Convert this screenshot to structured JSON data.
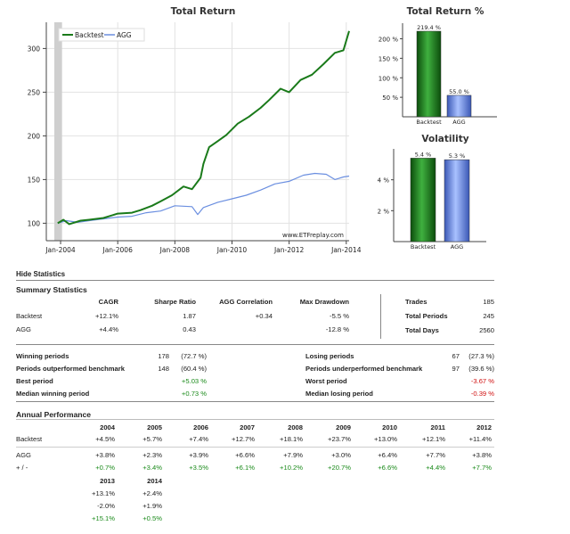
{
  "colors": {
    "backtest": "#1a7a1a",
    "agg": "#6b8fe0",
    "positive": "#1a8a1a",
    "negative": "#d01010"
  },
  "chart_data": [
    {
      "type": "line",
      "title": "Total Return",
      "legend": [
        "Backtest",
        "AGG"
      ],
      "legend_position": "top-left",
      "watermark": "www.ETFreplay.com",
      "x_ticks": [
        "Jan-2004",
        "Jan-2006",
        "Jan-2008",
        "Jan-2010",
        "Jan-2012",
        "Jan-2014"
      ],
      "y_ticks": [
        100,
        150,
        200,
        250,
        300
      ],
      "ylim": [
        80,
        330
      ],
      "xlim": [
        2003.5,
        2014.1
      ],
      "grid": true,
      "series": [
        {
          "name": "Backtest",
          "points": [
            [
              2003.9,
              100
            ],
            [
              2004.1,
              104
            ],
            [
              2004.3,
              99
            ],
            [
              2004.7,
              103
            ],
            [
              2005.0,
              104
            ],
            [
              2005.5,
              106
            ],
            [
              2006.0,
              111
            ],
            [
              2006.5,
              112
            ],
            [
              2006.8,
              115
            ],
            [
              2007.2,
              120
            ],
            [
              2007.5,
              125
            ],
            [
              2007.9,
              132
            ],
            [
              2008.3,
              142
            ],
            [
              2008.6,
              139
            ],
            [
              2008.9,
              152
            ],
            [
              2009.0,
              168
            ],
            [
              2009.2,
              187
            ],
            [
              2009.5,
              194
            ],
            [
              2009.8,
              201
            ],
            [
              2010.2,
              214
            ],
            [
              2010.6,
              222
            ],
            [
              2011.0,
              232
            ],
            [
              2011.3,
              241
            ],
            [
              2011.7,
              254
            ],
            [
              2012.0,
              250
            ],
            [
              2012.4,
              264
            ],
            [
              2012.8,
              270
            ],
            [
              2013.2,
              282
            ],
            [
              2013.6,
              295
            ],
            [
              2013.9,
              298
            ],
            [
              2014.1,
              320
            ]
          ]
        },
        {
          "name": "AGG",
          "points": [
            [
              2003.9,
              100
            ],
            [
              2004.2,
              103
            ],
            [
              2004.6,
              101
            ],
            [
              2005.0,
              103
            ],
            [
              2005.5,
              105
            ],
            [
              2006.0,
              107
            ],
            [
              2006.5,
              108
            ],
            [
              2007.0,
              112
            ],
            [
              2007.5,
              114
            ],
            [
              2008.0,
              120
            ],
            [
              2008.6,
              119
            ],
            [
              2008.8,
              110
            ],
            [
              2009.0,
              118
            ],
            [
              2009.5,
              124
            ],
            [
              2010.0,
              128
            ],
            [
              2010.5,
              132
            ],
            [
              2011.0,
              138
            ],
            [
              2011.5,
              145
            ],
            [
              2012.0,
              148
            ],
            [
              2012.5,
              155
            ],
            [
              2012.9,
              157
            ],
            [
              2013.3,
              156
            ],
            [
              2013.6,
              150
            ],
            [
              2013.9,
              153
            ],
            [
              2014.1,
              154
            ]
          ]
        }
      ]
    },
    {
      "type": "bar",
      "title": "Total Return %",
      "categories": [
        "Backtest",
        "AGG"
      ],
      "values": [
        219.4,
        55.0
      ],
      "labels": [
        "219.4 %",
        "55.0 %"
      ],
      "y_ticks": [
        "50 %",
        "100 %",
        "150 %",
        "200 %"
      ],
      "ylim": [
        0,
        240
      ]
    },
    {
      "type": "bar",
      "title": "Volatility",
      "categories": [
        "Backtest",
        "AGG"
      ],
      "values": [
        5.4,
        5.3
      ],
      "labels": [
        "5.4 %",
        "5.3 %"
      ],
      "y_ticks": [
        "2 %",
        "4 %"
      ],
      "ylim": [
        0,
        6
      ]
    }
  ],
  "hide_stats_link": "Hide Statistics",
  "summary": {
    "title": "Summary Statistics",
    "headers": [
      "CAGR",
      "Sharpe Ratio",
      "AGG Correlation",
      "Max Drawdown"
    ],
    "rows": [
      {
        "label": "Backtest",
        "cagr": "+12.1%",
        "sharpe": "1.87",
        "corr": "+0.34",
        "dd": "-5.5 %"
      },
      {
        "label": "AGG",
        "cagr": "+4.4%",
        "sharpe": "0.43",
        "corr": "",
        "dd": "-12.8 %"
      }
    ],
    "side": [
      {
        "label": "Trades",
        "value": "185"
      },
      {
        "label": "Total Periods",
        "value": "245"
      },
      {
        "label": "Total Days",
        "value": "2560"
      }
    ]
  },
  "periods": {
    "left": [
      {
        "label": "Winning periods",
        "value": "178",
        "pct": "(72.7 %)"
      },
      {
        "label": "Periods outperformed benchmark",
        "value": "148",
        "pct": "(60.4 %)"
      },
      {
        "label": "Best period",
        "value": "",
        "pct": "+5.03 %"
      },
      {
        "label": "Median winning period",
        "value": "",
        "pct": "+0.73 %"
      }
    ],
    "right": [
      {
        "label": "Losing periods",
        "value": "67",
        "pct": "(27.3 %)"
      },
      {
        "label": "Periods underperformed benchmark",
        "value": "97",
        "pct": "(39.6 %)"
      },
      {
        "label": "Worst period",
        "value": "",
        "pct": "-3.67 %"
      },
      {
        "label": "Median losing period",
        "value": "",
        "pct": "-0.39 %"
      }
    ]
  },
  "annual": {
    "title": "Annual Performance",
    "years1": [
      "2004",
      "2005",
      "2006",
      "2007",
      "2008",
      "2009",
      "2010",
      "2011",
      "2012"
    ],
    "backtest1": [
      "+4.5%",
      "+5.7%",
      "+7.4%",
      "+12.7%",
      "+18.1%",
      "+23.7%",
      "+13.0%",
      "+12.1%",
      "+11.4%"
    ],
    "agg1": [
      "+3.8%",
      "+2.3%",
      "+3.9%",
      "+6.6%",
      "+7.9%",
      "+3.0%",
      "+6.4%",
      "+7.7%",
      "+3.8%"
    ],
    "diff1": [
      "+0.7%",
      "+3.4%",
      "+3.5%",
      "+6.1%",
      "+10.2%",
      "+20.7%",
      "+6.6%",
      "+4.4%",
      "+7.7%"
    ],
    "years2": [
      "2013",
      "2014"
    ],
    "backtest2": [
      "+13.1%",
      "+2.4%"
    ],
    "agg2": [
      "-2.0%",
      "+1.9%"
    ],
    "diff2": [
      "+15.1%",
      "+0.5%"
    ],
    "row_labels": [
      "Backtest",
      "AGG",
      "+ / -"
    ]
  }
}
